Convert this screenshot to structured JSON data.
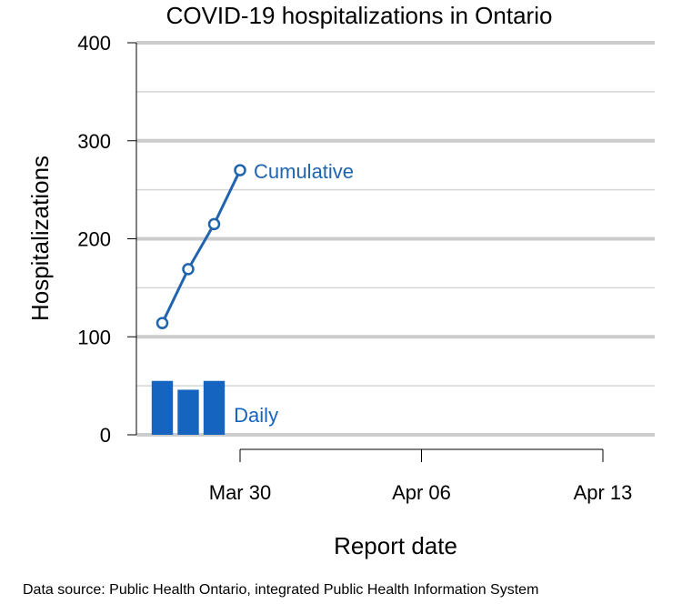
{
  "chart_data": {
    "type": "bar+line",
    "title": "COVID-19 hospitalizations in Ontario",
    "xlabel": "Report date",
    "ylabel": "Hospitalizations",
    "ylim": [
      0,
      400
    ],
    "y_ticks": [
      0,
      100,
      200,
      300,
      400
    ],
    "x_ticks": [
      {
        "date": "2020-03-30",
        "label": "Mar 30"
      },
      {
        "date": "2020-04-06",
        "label": "Apr 06"
      },
      {
        "date": "2020-04-13",
        "label": "Apr 13"
      }
    ],
    "x_range": [
      "2020-03-26",
      "2020-04-15"
    ],
    "grid": true,
    "series": [
      {
        "name": "Cumulative",
        "kind": "line",
        "color": "#1f64ad",
        "points": [
          {
            "date": "2020-03-27",
            "value": 114
          },
          {
            "date": "2020-03-28",
            "value": 169
          },
          {
            "date": "2020-03-29",
            "value": 215
          },
          {
            "date": "2020-03-30",
            "value": 270
          }
        ]
      },
      {
        "name": "Daily",
        "kind": "bar",
        "color": "#1565c0",
        "points": [
          {
            "date": "2020-03-27",
            "value": 55
          },
          {
            "date": "2020-03-28",
            "value": 46
          },
          {
            "date": "2020-03-29",
            "value": 55
          }
        ]
      }
    ]
  },
  "source_note": "Data source: Public Health Ontario, integrated Public Health Information System"
}
